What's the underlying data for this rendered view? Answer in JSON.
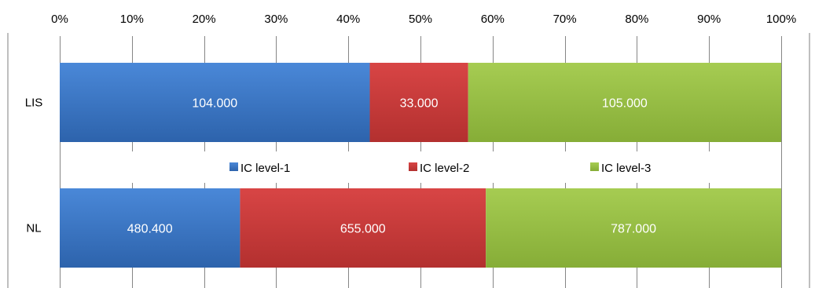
{
  "chart_data": {
    "type": "bar",
    "orientation": "horizontal",
    "stacking": "percent",
    "title": "",
    "categories": [
      "LIS",
      "NL"
    ],
    "series": [
      {
        "name": "IC level-1",
        "values": [
          104000,
          480400
        ],
        "labels": [
          "104.000",
          "480.400"
        ],
        "color": "#3b76c4"
      },
      {
        "name": "IC level-2",
        "values": [
          33000,
          655000
        ],
        "labels": [
          "33.000",
          "655.000"
        ],
        "color": "#c9393a"
      },
      {
        "name": "IC level-3",
        "values": [
          105000,
          787000
        ],
        "labels": [
          "105.000",
          "787.000"
        ],
        "color": "#98bf45"
      }
    ],
    "xaxis": {
      "ticks": [
        0,
        10,
        20,
        30,
        40,
        50,
        60,
        70,
        80,
        90,
        100
      ],
      "tick_labels": [
        "0%",
        "10%",
        "20%",
        "30%",
        "40%",
        "50%",
        "60%",
        "70%",
        "80%",
        "90%",
        "100%"
      ],
      "position": "top",
      "range": [
        0,
        100
      ]
    },
    "grid": true,
    "legend": "middle"
  }
}
